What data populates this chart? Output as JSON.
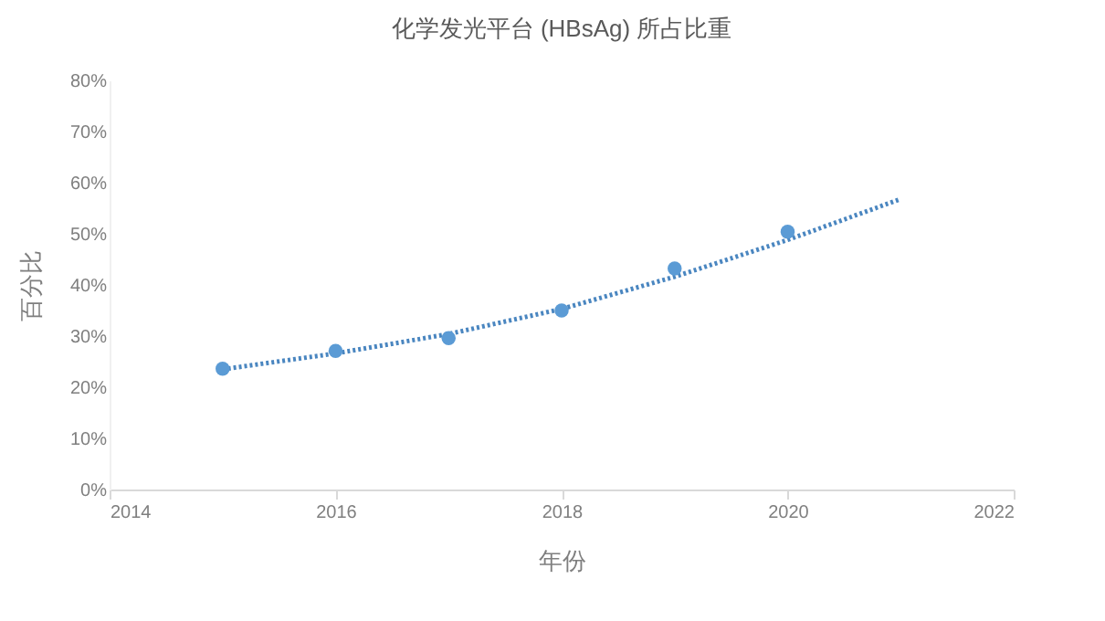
{
  "chart_data": {
    "type": "scatter",
    "title": "化学发光平台 (HBsAg) 所占比重",
    "xlabel": "年份",
    "ylabel": "百分比",
    "x": [
      2015,
      2016,
      2017,
      2018,
      2019,
      2020
    ],
    "series": [
      {
        "color": "#5b9bd5",
        "marker": "circle",
        "values": [
          23.6,
          27.1,
          29.6,
          35.0,
          43.2,
          50.4
        ]
      },
      {
        "type": "line",
        "color": "#4a86c0",
        "line_style": "dotted",
        "marker": "none",
        "x": [
          2015,
          2016,
          2017,
          2018,
          2019,
          2020,
          2021
        ],
        "values": [
          23.5,
          26.6,
          30.4,
          35.3,
          41.6,
          48.8,
          56.8
        ]
      }
    ],
    "xlim": [
      2014,
      2022
    ],
    "xticks": [
      2014,
      2016,
      2018,
      2020,
      2022
    ],
    "ylim": [
      0,
      80
    ],
    "yticks": [
      {
        "value": 0,
        "label": "0%"
      },
      {
        "value": 10,
        "label": "10%"
      },
      {
        "value": 20,
        "label": "20%"
      },
      {
        "value": 30,
        "label": "30%"
      },
      {
        "value": 40,
        "label": "40%"
      },
      {
        "value": 50,
        "label": "50%"
      },
      {
        "value": 60,
        "label": "60%"
      },
      {
        "value": 70,
        "label": "70%"
      },
      {
        "value": 80,
        "label": "80%"
      }
    ],
    "grid": false
  }
}
